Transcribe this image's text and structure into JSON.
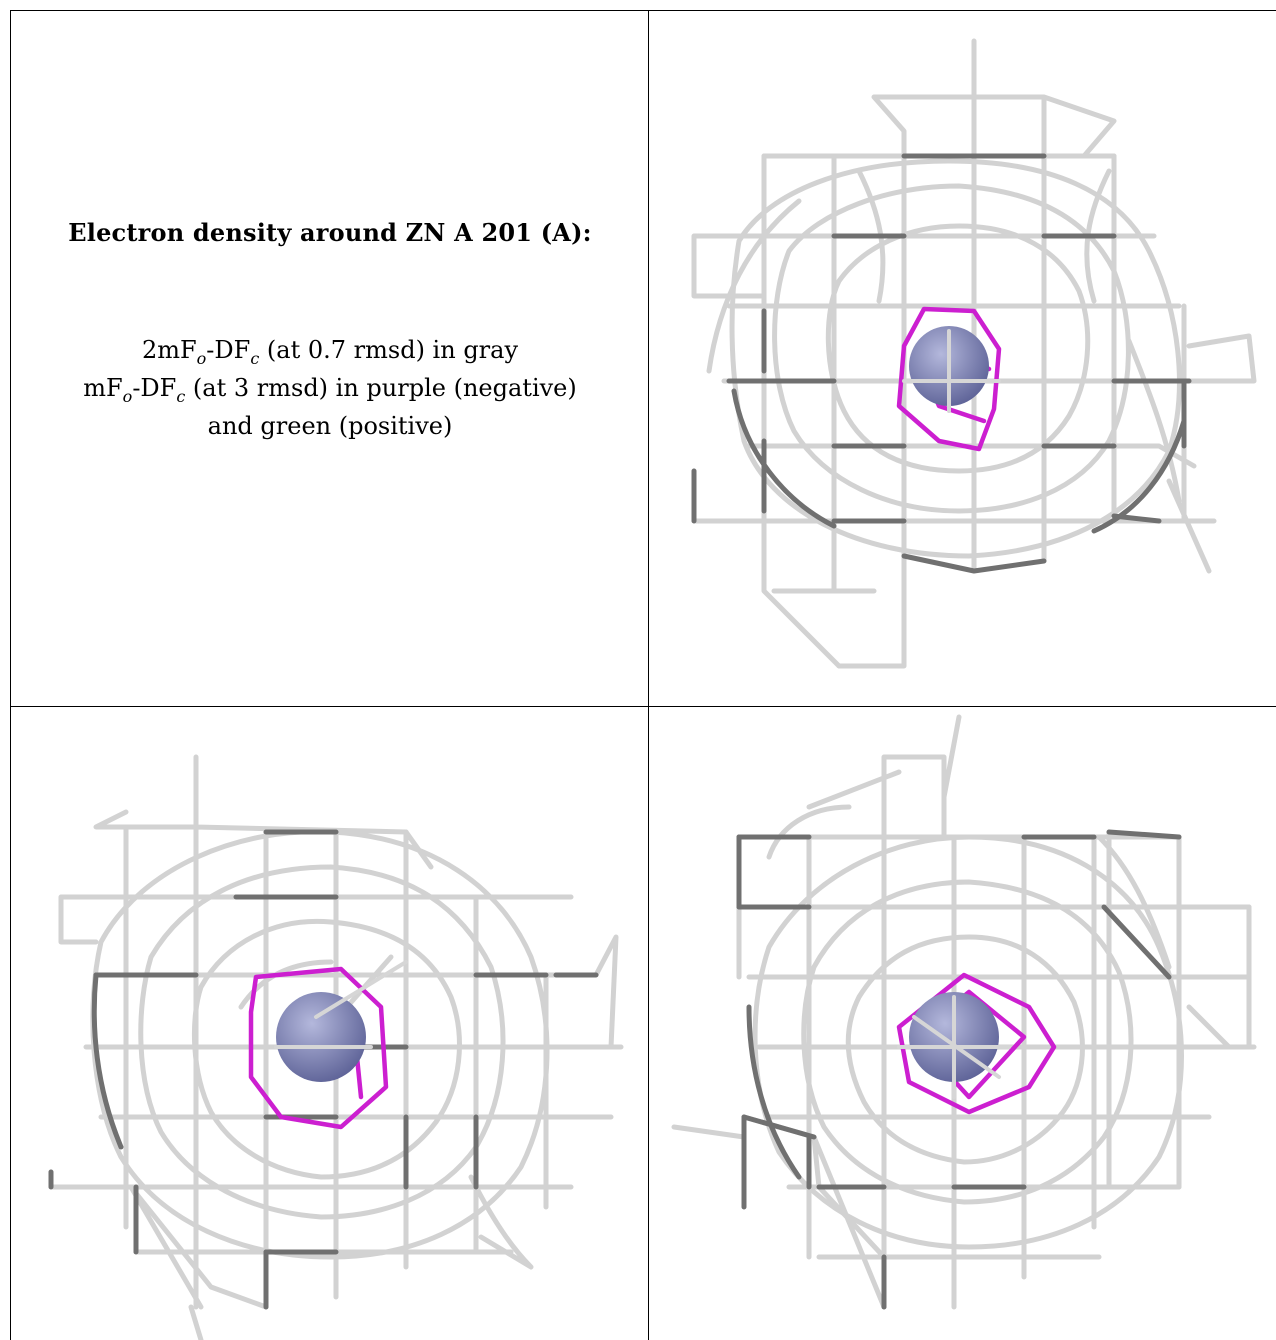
{
  "caption": {
    "title": "Electron density around ZN A 201 (A):",
    "line1": {
      "pre": "2mF",
      "sub1": "o",
      "mid": "-DF",
      "sub2": "c",
      "post": " (at 0.7 rmsd) in gray"
    },
    "line2": {
      "pre": "mF",
      "sub1": "o",
      "mid": "-DF",
      "sub2": "c",
      "post": " (at 3 rmsd) in purple (negative)"
    },
    "line3": "and green (positive)"
  },
  "colors": {
    "mesh_light": "#d4d4d4",
    "mesh_dark": "#6e6e6e",
    "negative_density": "#cc1fd0",
    "atom": "#8a8fc0"
  },
  "views": [
    {
      "name": "view-top-right",
      "icon": "zinc-atom-icon"
    },
    {
      "name": "view-bottom-left",
      "icon": "zinc-atom-icon"
    },
    {
      "name": "view-bottom-right",
      "icon": "zinc-atom-icon"
    }
  ]
}
